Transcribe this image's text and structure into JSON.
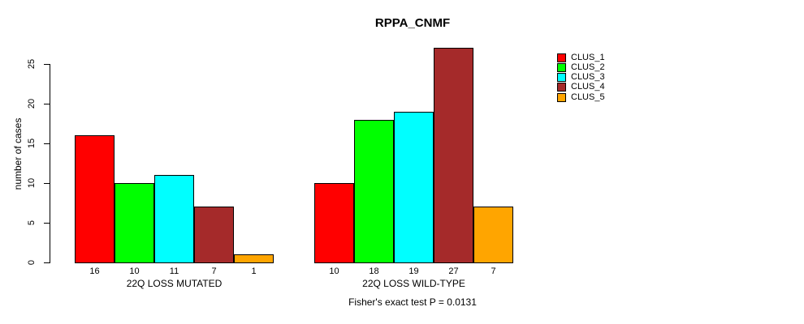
{
  "title": "RPPA_CNMF",
  "footer": {
    "fisher_note": "Fisher's exact test P = 0.0131"
  },
  "chart_data": {
    "type": "bar",
    "title": "RPPA_CNMF",
    "xlabel": "",
    "ylabel": "number of cases",
    "ylim": [
      0,
      27
    ],
    "yticks": [
      0,
      5,
      10,
      15,
      20,
      25
    ],
    "grid": false,
    "legend_position": "right",
    "series_names": [
      "CLUS_1",
      "CLUS_2",
      "CLUS_3",
      "CLUS_4",
      "CLUS_5"
    ],
    "series_colors": [
      "#FF0000",
      "#00FF00",
      "#00FFFF",
      "#A52A2A",
      "#FFA500"
    ],
    "groups": [
      {
        "label": "22Q LOSS MUTATED",
        "values": [
          16,
          10,
          11,
          7,
          1
        ]
      },
      {
        "label": "22Q LOSS WILD-TYPE",
        "values": [
          10,
          18,
          19,
          27,
          7
        ]
      }
    ],
    "bar_value_labels_shown": true
  },
  "legend": {
    "items": [
      {
        "label": "CLUS_1",
        "color": "#FF0000"
      },
      {
        "label": "CLUS_2",
        "color": "#00FF00"
      },
      {
        "label": "CLUS_3",
        "color": "#00FFFF"
      },
      {
        "label": "CLUS_4",
        "color": "#A52A2A"
      },
      {
        "label": "CLUS_5",
        "color": "#FFA500"
      }
    ]
  }
}
